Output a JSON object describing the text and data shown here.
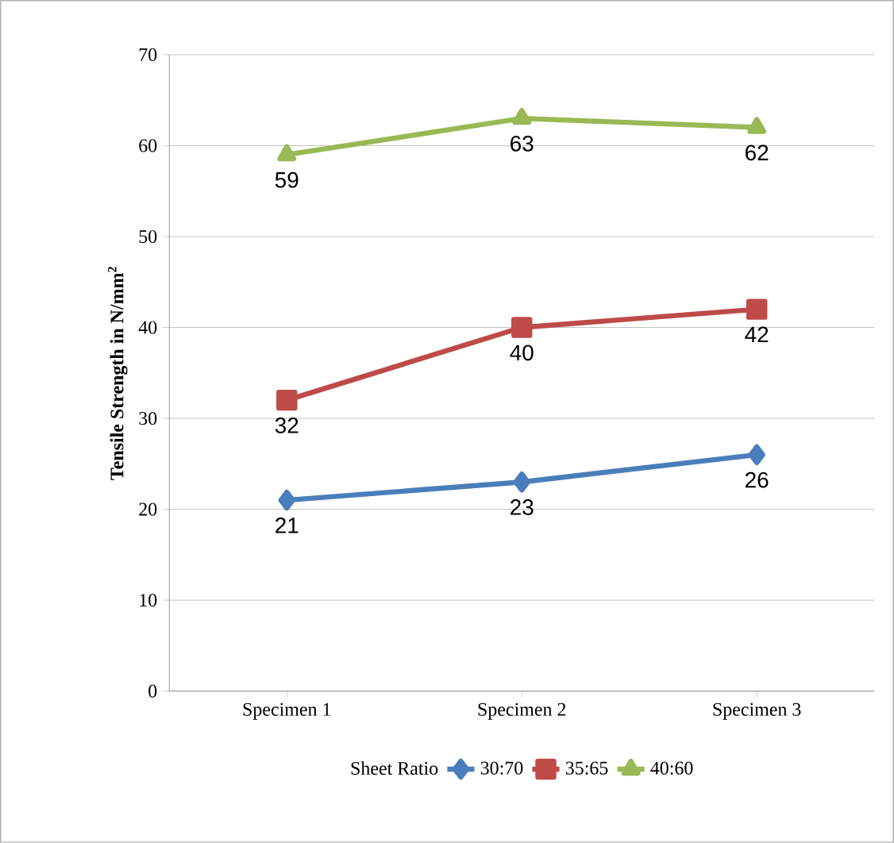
{
  "chart_data": {
    "type": "line",
    "ylabel": "Tensile  Strength in N/mm$^{2}$",
    "legend_title": "Sheet Ratio",
    "categories": [
      "Specimen 1",
      "Specimen 2",
      "Specimen 3"
    ],
    "series": [
      {
        "name": "30:70",
        "color": "#4a7ebb",
        "marker": "diamond",
        "values": [
          21,
          23,
          26
        ]
      },
      {
        "name": "35:65",
        "color": "#be4b48",
        "marker": "square",
        "values": [
          32,
          40,
          42
        ]
      },
      {
        "name": "40:60",
        "color": "#98b954",
        "marker": "triangle",
        "values": [
          59,
          63,
          62
        ]
      }
    ],
    "ylim": [
      0,
      70
    ],
    "yticks": [
      0,
      10,
      20,
      30,
      40,
      50,
      60,
      70
    ],
    "grid": "y",
    "legend": "bottom",
    "data_labels": true
  }
}
